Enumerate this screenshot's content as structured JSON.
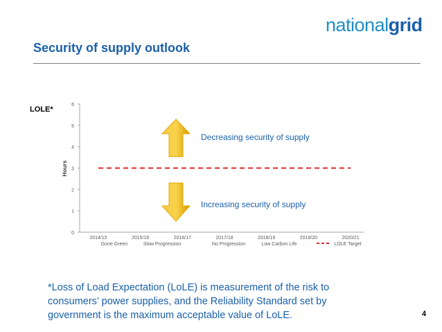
{
  "logo": {
    "light": "national",
    "bold": "grid"
  },
  "slide": {
    "title": "Security of supply outlook",
    "lole_label": "LOLE*",
    "footnote": "*Loss of Load Expectation (LoLE) is measurement of the risk to consumers’ power supplies, and the Reliability Standard set by government is the maximum acceptable value of LoLE.",
    "page_number": "4"
  },
  "colors": {
    "brand_blue": "#1a5fa8",
    "target_red": "#e0262a",
    "arrow_gold": "#f2b705"
  },
  "chart_data": {
    "type": "line",
    "ylabel": "Hours",
    "ylim": [
      0,
      6
    ],
    "yticks": [
      "0",
      "1",
      "2",
      "3",
      "4",
      "5",
      "6"
    ],
    "categories": [
      "2014/15",
      "2015/16",
      "2016/17",
      "2017/18",
      "2018/19",
      "2019/20",
      "2020/21"
    ],
    "series": [
      {
        "name": "LOLE Target",
        "values": [
          3,
          3,
          3,
          3,
          3,
          3,
          3
        ],
        "color": "#e0262a",
        "style": "dashed"
      }
    ],
    "legend_entries": [
      "Gone Green",
      "Slow Progression",
      "No Progression",
      "Low Carbon Life",
      "LOLE Target"
    ],
    "annotations": {
      "up": "Decreasing security of supply",
      "down": "Increasing security of supply"
    },
    "grid": false,
    "legend_position": "bottom"
  }
}
